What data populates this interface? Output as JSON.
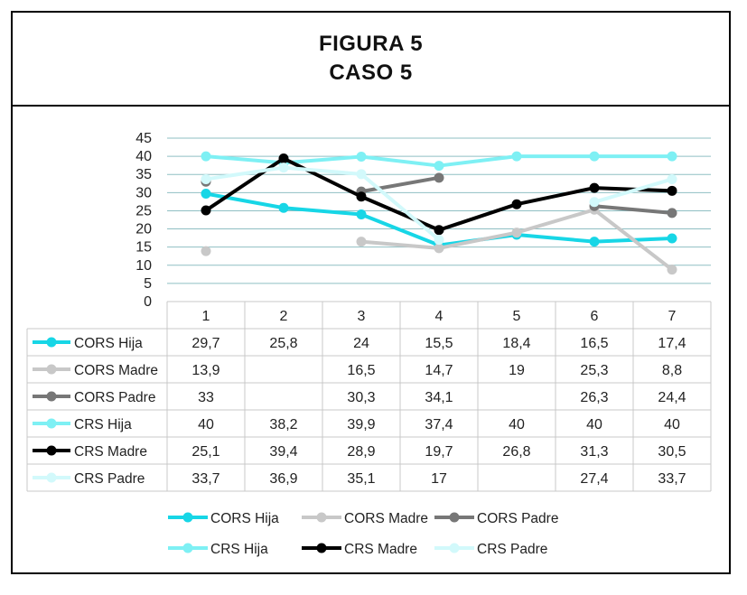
{
  "header": {
    "line1": "FIGURA 5",
    "line2": "CASO 5"
  },
  "chart_data": {
    "type": "line",
    "categories": [
      "1",
      "2",
      "3",
      "4",
      "5",
      "6",
      "7"
    ],
    "ylim": [
      0,
      45
    ],
    "yticks": [
      0,
      5,
      10,
      15,
      20,
      25,
      30,
      35,
      40,
      45
    ],
    "grid": true,
    "legend_position": "bottom",
    "data_table": true,
    "series": [
      {
        "name": "CORS Hija",
        "color": "#17d6e6",
        "values": [
          29.7,
          25.8,
          24,
          15.5,
          18.4,
          16.5,
          17.4
        ],
        "labels": [
          "29,7",
          "25,8",
          "24",
          "15,5",
          "18,4",
          "16,5",
          "17,4"
        ]
      },
      {
        "name": "CORS Madre",
        "color": "#c8c8c8",
        "values": [
          13.9,
          null,
          16.5,
          14.7,
          19,
          25.3,
          8.8
        ],
        "labels": [
          "13,9",
          "",
          "16,5",
          "14,7",
          "19",
          "25,3",
          "8,8"
        ]
      },
      {
        "name": "CORS Padre",
        "color": "#777777",
        "values": [
          33,
          null,
          30.3,
          34.1,
          null,
          26.3,
          24.4
        ],
        "labels": [
          "33",
          "",
          "30,3",
          "34,1",
          "",
          "26,3",
          "24,4"
        ]
      },
      {
        "name": "CRS Hija",
        "color": "#7ef0f4",
        "values": [
          40,
          38.2,
          39.9,
          37.4,
          40,
          40,
          40
        ],
        "labels": [
          "40",
          "38,2",
          "39,9",
          "37,4",
          "40",
          "40",
          "40"
        ]
      },
      {
        "name": "CRS Madre",
        "color": "#000000",
        "values": [
          25.1,
          39.4,
          28.9,
          19.7,
          26.8,
          31.3,
          30.5
        ],
        "labels": [
          "25,1",
          "39,4",
          "28,9",
          "19,7",
          "26,8",
          "31,3",
          "30,5"
        ]
      },
      {
        "name": "CRS Padre",
        "color": "#d2f9fb",
        "values": [
          33.7,
          36.9,
          35.1,
          17,
          null,
          27.4,
          33.7
        ],
        "labels": [
          "33,7",
          "36,9",
          "35,1",
          "17",
          "",
          "27,4",
          "33,7"
        ]
      }
    ]
  }
}
